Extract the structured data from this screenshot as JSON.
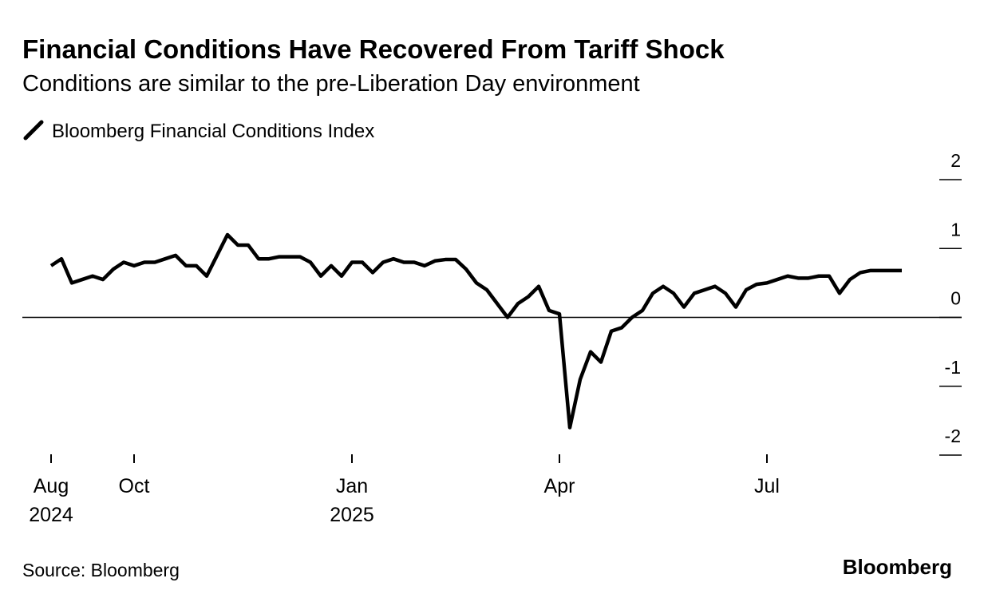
{
  "chart_data": {
    "type": "line",
    "title": "Financial Conditions Have Recovered From Tariff Shock",
    "subtitle": "Conditions are similar to the pre-Liberation Day environment",
    "source": "Source: Bloomberg",
    "brand": "Bloomberg",
    "categories": [
      "Aug 2024",
      null,
      null,
      null,
      null,
      null,
      null,
      null,
      "Oct",
      null,
      null,
      null,
      null,
      null,
      null,
      null,
      null,
      null,
      null,
      null,
      null,
      null,
      null,
      null,
      null,
      null,
      null,
      null,
      null,
      "Jan 2025",
      null,
      null,
      null,
      null,
      null,
      null,
      null,
      null,
      null,
      null,
      null,
      null,
      null,
      null,
      null,
      null,
      null,
      null,
      null,
      "Apr",
      null,
      null,
      null,
      null,
      null,
      null,
      null,
      null,
      null,
      null,
      null,
      null,
      null,
      null,
      null,
      null,
      null,
      null,
      null,
      "Jul",
      null,
      null,
      null,
      null,
      null,
      null,
      null,
      null,
      null,
      null,
      null,
      null,
      null
    ],
    "series": [
      {
        "name": "Bloomberg Financial Conditions Index",
        "color": "#000000",
        "values": [
          0.75,
          0.85,
          0.5,
          0.55,
          0.6,
          0.55,
          0.7,
          0.8,
          0.75,
          0.8,
          0.8,
          0.85,
          0.9,
          0.75,
          0.75,
          0.6,
          0.9,
          1.2,
          1.05,
          1.05,
          0.85,
          0.85,
          0.88,
          0.88,
          0.88,
          0.8,
          0.6,
          0.75,
          0.6,
          0.8,
          0.8,
          0.65,
          0.8,
          0.85,
          0.8,
          0.8,
          0.75,
          0.82,
          0.84,
          0.84,
          0.7,
          0.5,
          0.4,
          0.2,
          0.0,
          0.2,
          0.3,
          0.45,
          0.1,
          0.05,
          -1.6,
          -0.9,
          -0.5,
          -0.65,
          -0.2,
          -0.15,
          0.0,
          0.1,
          0.35,
          0.45,
          0.35,
          0.15,
          0.35,
          0.4,
          0.45,
          0.35,
          0.15,
          0.4,
          0.48,
          0.5,
          0.55,
          0.6,
          0.57,
          0.57,
          0.6,
          0.6,
          0.35,
          0.55,
          0.65,
          0.68,
          0.68,
          0.68,
          0.68
        ]
      }
    ],
    "ylim": [
      -2,
      2
    ],
    "yticks": [
      -2,
      -1,
      0,
      1,
      2
    ]
  }
}
